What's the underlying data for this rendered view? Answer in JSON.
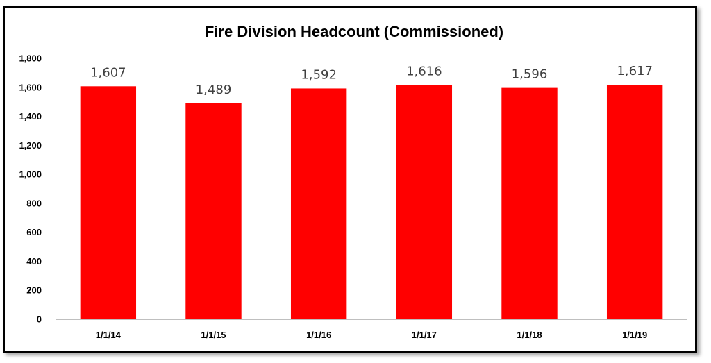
{
  "chart_data": {
    "type": "bar",
    "title": "Fire Division Headcount (Commissioned)",
    "categories": [
      "1/1/14",
      "1/1/15",
      "1/1/16",
      "1/1/17",
      "1/1/18",
      "1/1/19"
    ],
    "values": [
      1607,
      1489,
      1592,
      1616,
      1596,
      1617
    ],
    "data_labels": [
      "1,607",
      "1,489",
      "1,592",
      "1,616",
      "1,596",
      "1,617"
    ],
    "yticks": [
      0,
      200,
      400,
      600,
      800,
      1000,
      1200,
      1400,
      1600,
      1800
    ],
    "ytick_labels": [
      "0",
      "200",
      "400",
      "600",
      "800",
      "1,000",
      "1,200",
      "1,400",
      "1,600",
      "1,800"
    ],
    "ylim": [
      0,
      1800
    ],
    "grid": false,
    "legend": false,
    "colors": {
      "bar": "#FF0000",
      "frame": "#000000",
      "axis": "#BFBFBF"
    }
  }
}
